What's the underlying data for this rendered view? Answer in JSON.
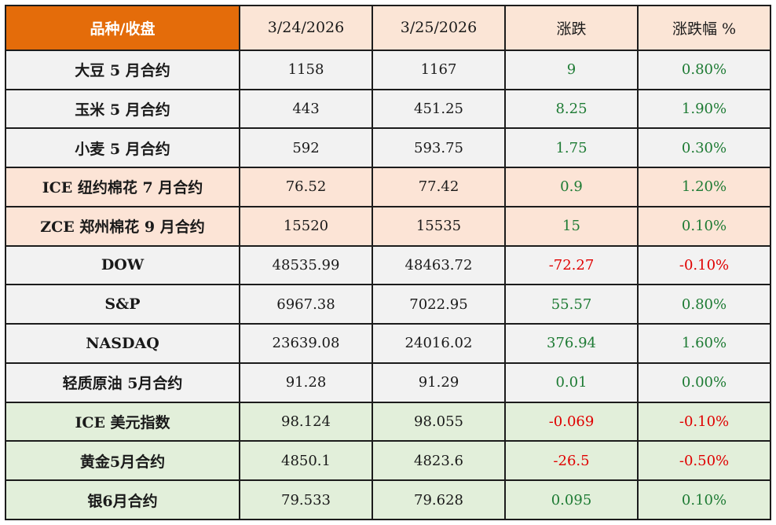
{
  "header": {
    "col_name": "品种/收盘",
    "col_date1": "3/24/2026",
    "col_date2": "3/25/2026",
    "col_change": "涨跌",
    "col_pct": "涨跌幅 %"
  },
  "colors": {
    "header_accent": "#e46c0a",
    "header_bg": "#fbe5d6",
    "row_gray": "#f2f2f2",
    "row_peach": "#fce4d6",
    "row_green": "#e2efda",
    "positive_text": "#1e7b34",
    "negative_text": "#e00000"
  },
  "rows": [
    {
      "name": "大豆 5 月合约",
      "d1": "1158",
      "d2": "1167",
      "chg": "9",
      "pct": "0.80%",
      "dir": "up",
      "group": "gray"
    },
    {
      "name": "玉米 5 月合约",
      "d1": "443",
      "d2": "451.25",
      "chg": "8.25",
      "pct": "1.90%",
      "dir": "up",
      "group": "gray"
    },
    {
      "name": "小麦 5 月合约",
      "d1": "592",
      "d2": "593.75",
      "chg": "1.75",
      "pct": "0.30%",
      "dir": "up",
      "group": "gray"
    },
    {
      "name": "ICE 纽约棉花 7 月合约",
      "d1": "76.52",
      "d2": "77.42",
      "chg": "0.9",
      "pct": "1.20%",
      "dir": "up",
      "group": "peach"
    },
    {
      "name": "ZCE 郑州棉花 9 月合约",
      "d1": "15520",
      "d2": "15535",
      "chg": "15",
      "pct": "0.10%",
      "dir": "up",
      "group": "peach"
    },
    {
      "name": "DOW",
      "d1": "48535.99",
      "d2": "48463.72",
      "chg": "-72.27",
      "pct": "-0.10%",
      "dir": "down",
      "group": "gray"
    },
    {
      "name": "S&P",
      "d1": "6967.38",
      "d2": "7022.95",
      "chg": "55.57",
      "pct": "0.80%",
      "dir": "up",
      "group": "gray"
    },
    {
      "name": "NASDAQ",
      "d1": "23639.08",
      "d2": "24016.02",
      "chg": "376.94",
      "pct": "1.60%",
      "dir": "up",
      "group": "gray"
    },
    {
      "name": "轻质原油 5月合约",
      "d1": "91.28",
      "d2": "91.29",
      "chg": "0.01",
      "pct": "0.00%",
      "dir": "up",
      "group": "gray"
    },
    {
      "name": "ICE 美元指数",
      "d1": "98.124",
      "d2": "98.055",
      "chg": "-0.069",
      "pct": "-0.10%",
      "dir": "down",
      "group": "green"
    },
    {
      "name": "黄金5月合约",
      "d1": "4850.1",
      "d2": "4823.6",
      "chg": "-26.5",
      "pct": "-0.50%",
      "dir": "down",
      "group": "green"
    },
    {
      "name": "银6月合约",
      "d1": "79.533",
      "d2": "79.628",
      "chg": "0.095",
      "pct": "0.10%",
      "dir": "up",
      "group": "green"
    }
  ]
}
